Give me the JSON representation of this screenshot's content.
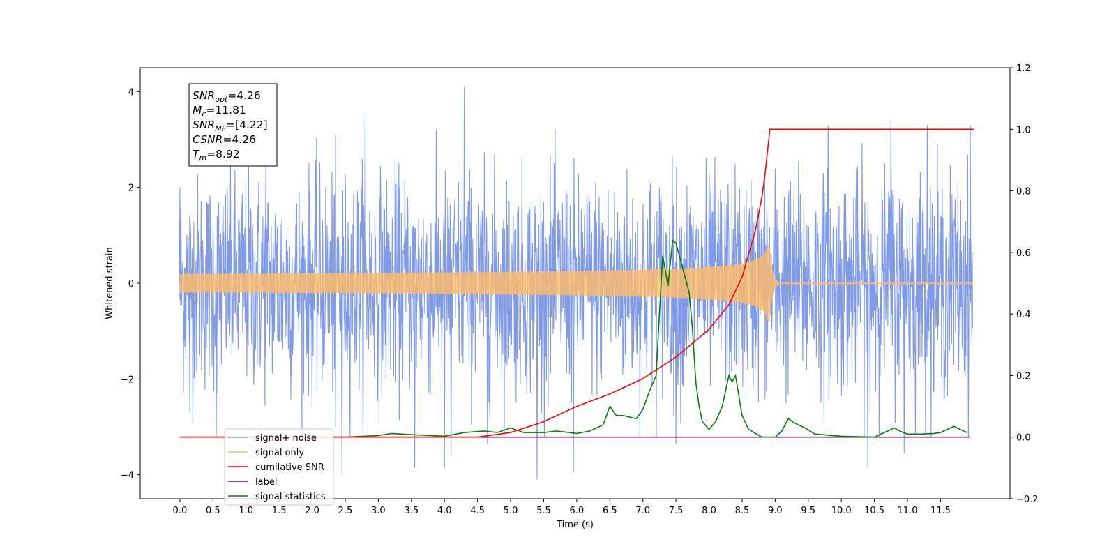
{
  "chart_data": {
    "type": "line",
    "xlabel": "Time (s)",
    "ylabel": "Whitened strain",
    "ylabel_right": "",
    "xlim": [
      -0.6,
      12.55
    ],
    "ylim": [
      -4.5,
      4.5
    ],
    "ylim_right": [
      -0.2,
      1.2
    ],
    "x_ticks": [
      "0.0",
      "0.5",
      "1.0",
      "1.5",
      "2.0",
      "2.5",
      "3.0",
      "3.5",
      "4.0",
      "4.5",
      "5.0",
      "5.5",
      "6.0",
      "6.5",
      "7.0",
      "7.5",
      "8.0",
      "8.5",
      "9.0",
      "9.5",
      "10.0",
      "10.5",
      "11.0",
      "11.5"
    ],
    "y_ticks": [
      "−4",
      "−2",
      "0",
      "2",
      "4"
    ],
    "y_ticks_right": [
      "−0.2",
      "0.0",
      "0.2",
      "0.4",
      "0.6",
      "0.8",
      "1.0",
      "1.2"
    ],
    "grid": false,
    "legend_position": "lower-left",
    "annotation": [
      {
        "base": "SNR",
        "sub": "opt",
        "value": "=4.26"
      },
      {
        "base": "M",
        "sub": "c",
        "value": "=11.81"
      },
      {
        "base": "SNR",
        "sub": "MF",
        "value": "=[4.22]"
      },
      {
        "base": "CSNR",
        "sub": "",
        "value": "=4.26"
      },
      {
        "base": "T",
        "sub": "m",
        "value": "=8.92"
      }
    ],
    "series": [
      {
        "name": "signal+ noise",
        "color": "#7995e9",
        "axis": "left",
        "style": "noise",
        "x_range": [
          0.0,
          11.99
        ],
        "typical_amplitude": 1.8,
        "spikes": [
          {
            "x": 0.0,
            "y": 2.0
          },
          {
            "x": 0.15,
            "y": -2.7
          },
          {
            "x": 0.55,
            "y": -3.2
          },
          {
            "x": 1.3,
            "y": 2.6
          },
          {
            "x": 2.35,
            "y": -3.0
          },
          {
            "x": 2.45,
            "y": -4.0
          },
          {
            "x": 2.8,
            "y": 3.55
          },
          {
            "x": 3.55,
            "y": -3.85
          },
          {
            "x": 4.0,
            "y": -3.85
          },
          {
            "x": 4.1,
            "y": -3.6
          },
          {
            "x": 4.3,
            "y": 4.1
          },
          {
            "x": 4.65,
            "y": -3.35
          },
          {
            "x": 5.4,
            "y": -4.1
          },
          {
            "x": 5.95,
            "y": -3.95
          },
          {
            "x": 7.5,
            "y": -3.35
          },
          {
            "x": 9.8,
            "y": 3.3
          },
          {
            "x": 10.4,
            "y": -3.85
          },
          {
            "x": 10.75,
            "y": 3.4
          },
          {
            "x": 10.95,
            "y": -3.55
          },
          {
            "x": 11.3,
            "y": 3.3
          },
          {
            "x": 11.95,
            "y": 3.3
          }
        ]
      },
      {
        "name": "signal only",
        "color": "#ffbb66",
        "axis": "left",
        "style": "chirp",
        "x_range": [
          0.0,
          11.99
        ],
        "merger_time": 8.92,
        "peak_amplitude": 0.8
      },
      {
        "name": "cumilative SNR",
        "color": "#ff0000",
        "axis": "right",
        "x": [
          0.0,
          4.5,
          5.0,
          5.5,
          6.0,
          6.5,
          7.0,
          7.5,
          8.0,
          8.3,
          8.5,
          8.7,
          8.8,
          8.85,
          8.9,
          8.92,
          12.0
        ],
        "values": [
          0.0,
          0.0,
          0.015,
          0.05,
          0.1,
          0.14,
          0.19,
          0.26,
          0.35,
          0.43,
          0.52,
          0.67,
          0.78,
          0.86,
          0.96,
          1.0,
          1.0
        ]
      },
      {
        "name": "label",
        "color": "#6a0a6a",
        "axis": "right",
        "x": [
          0.0,
          11.95
        ],
        "values": [
          0.0,
          0.0
        ]
      },
      {
        "name": "signal statistics",
        "color": "#008000",
        "axis": "right",
        "x": [
          0.0,
          1.0,
          2.0,
          2.5,
          3.0,
          3.2,
          3.5,
          4.0,
          4.3,
          4.6,
          4.8,
          5.0,
          5.2,
          5.5,
          5.7,
          6.0,
          6.2,
          6.4,
          6.5,
          6.6,
          6.7,
          6.9,
          7.0,
          7.1,
          7.2,
          7.25,
          7.3,
          7.38,
          7.45,
          7.5,
          7.55,
          7.6,
          7.7,
          7.75,
          7.8,
          7.85,
          7.9,
          8.0,
          8.1,
          8.2,
          8.3,
          8.35,
          8.4,
          8.5,
          8.6,
          8.8,
          9.0,
          9.1,
          9.2,
          9.3,
          9.45,
          9.6,
          10.0,
          10.5,
          10.8,
          10.9,
          11.0,
          11.2,
          11.4,
          11.5,
          11.6,
          11.7,
          11.8,
          11.9
        ],
        "values": [
          0.0,
          0.0,
          0.0,
          0.0,
          0.005,
          0.012,
          0.008,
          0.003,
          0.015,
          0.02,
          0.015,
          0.03,
          0.015,
          0.015,
          0.02,
          0.012,
          0.02,
          0.04,
          0.1,
          0.07,
          0.07,
          0.06,
          0.09,
          0.15,
          0.2,
          0.4,
          0.59,
          0.49,
          0.64,
          0.63,
          0.59,
          0.55,
          0.47,
          0.35,
          0.18,
          0.1,
          0.05,
          0.025,
          0.05,
          0.1,
          0.2,
          0.18,
          0.2,
          0.07,
          0.025,
          0.0,
          0.0,
          0.02,
          0.06,
          0.045,
          0.03,
          0.01,
          0.003,
          0.0,
          0.03,
          0.018,
          0.01,
          0.01,
          0.012,
          0.015,
          0.025,
          0.035,
          0.025,
          0.015
        ]
      }
    ]
  }
}
